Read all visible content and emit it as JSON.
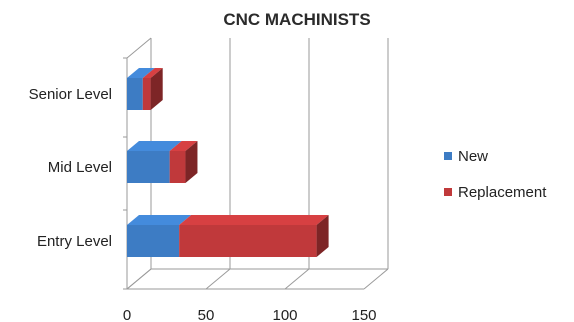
{
  "chart_data": {
    "type": "bar",
    "orientation": "horizontal",
    "stacked": true,
    "three_d": true,
    "title": "CNC MACHINISTS",
    "categories": [
      "Entry Level",
      "Mid Level",
      "Senior Level"
    ],
    "series": [
      {
        "name": "New",
        "values": [
          33,
          27,
          10
        ],
        "color": "#3d7cc4"
      },
      {
        "name": "Replacement",
        "values": [
          87,
          10,
          5
        ],
        "color": "#c0393b"
      }
    ],
    "xlim": [
      0,
      150
    ],
    "xticks": [
      "0",
      "50",
      "100",
      "150"
    ],
    "grid": true,
    "legend_position": "right"
  }
}
